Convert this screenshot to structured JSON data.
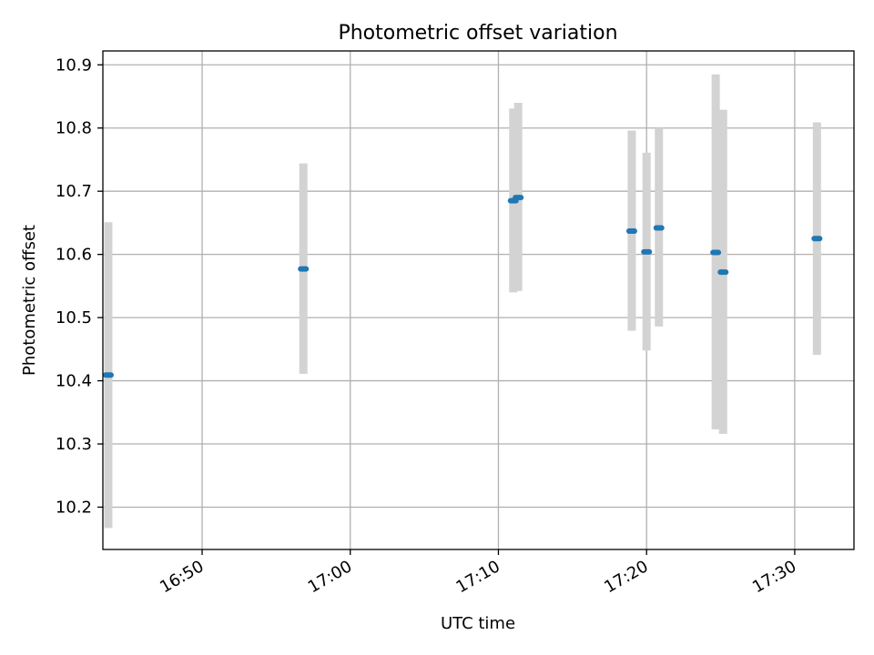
{
  "chart_data": {
    "type": "scatter",
    "title": "Photometric offset variation",
    "xlabel": "UTC time",
    "ylabel": "Photometric offset",
    "xlim": [
      "16:43.3",
      "17:34.0"
    ],
    "ylim": [
      10.133,
      10.922
    ],
    "x_ticks": [
      "16:50",
      "17:00",
      "17:10",
      "17:20",
      "17:30"
    ],
    "y_ticks": [
      "10.2",
      "10.3",
      "10.4",
      "10.5",
      "10.6",
      "10.7",
      "10.8",
      "10.9"
    ],
    "grid": true,
    "point_color": "#1f77b4",
    "errorbar_color": "#d3d3d3",
    "series": [
      {
        "points": [
          {
            "x": "16:43:40",
            "y": 10.409,
            "yerr_low": 10.167,
            "yerr_high": 10.651
          },
          {
            "x": "16:56:50",
            "y": 10.577,
            "yerr_low": 10.411,
            "yerr_high": 10.744
          },
          {
            "x": "17:11:00",
            "y": 10.685,
            "yerr_low": 10.54,
            "yerr_high": 10.831
          },
          {
            "x": "17:11:20",
            "y": 10.69,
            "yerr_low": 10.542,
            "yerr_high": 10.84
          },
          {
            "x": "17:19:00",
            "y": 10.637,
            "yerr_low": 10.479,
            "yerr_high": 10.796
          },
          {
            "x": "17:20:00",
            "y": 10.604,
            "yerr_low": 10.448,
            "yerr_high": 10.761
          },
          {
            "x": "17:20:50",
            "y": 10.642,
            "yerr_low": 10.486,
            "yerr_high": 10.8
          },
          {
            "x": "17:24:40",
            "y": 10.603,
            "yerr_low": 10.323,
            "yerr_high": 10.885
          },
          {
            "x": "17:25:10",
            "y": 10.572,
            "yerr_low": 10.316,
            "yerr_high": 10.829
          },
          {
            "x": "17:31:30",
            "y": 10.625,
            "yerr_low": 10.441,
            "yerr_high": 10.809
          }
        ]
      }
    ]
  }
}
